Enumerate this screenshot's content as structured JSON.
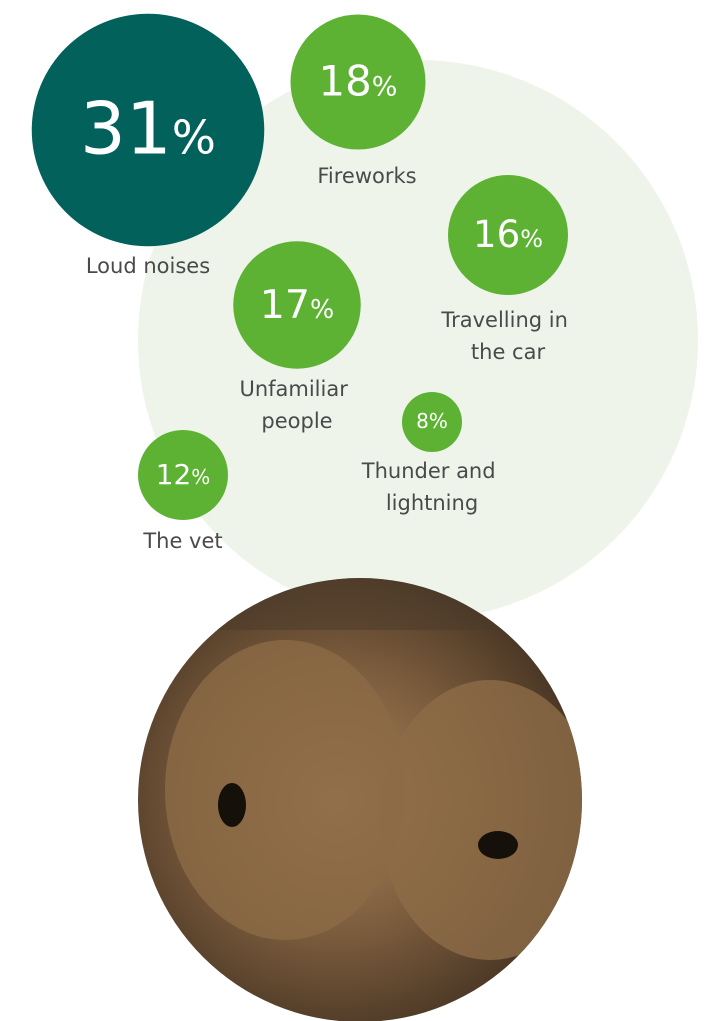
{
  "chart_data": {
    "type": "bubble",
    "categories": [
      "Loud noises",
      "Fireworks",
      "Travelling in the car",
      "Unfamiliar people",
      "Thunder and lightning",
      "The vet"
    ],
    "values": [
      31,
      18,
      16,
      17,
      8,
      12
    ],
    "value_labels": [
      "31%",
      "18%",
      "16%",
      "17%",
      "8%",
      "12%"
    ],
    "colors": [
      "#02615a",
      "#5db233",
      "#5db233",
      "#5db233",
      "#5db233",
      "#5db233"
    ]
  }
}
